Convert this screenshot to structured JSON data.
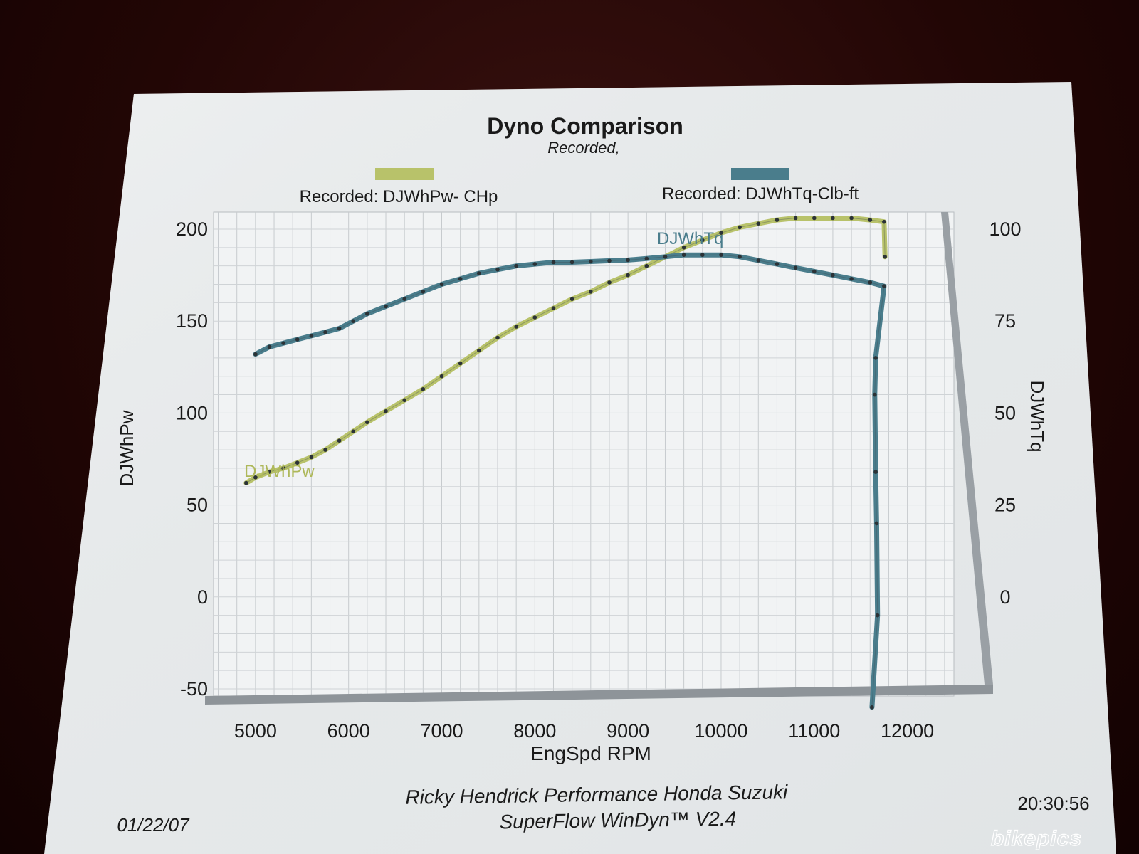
{
  "chart_data": {
    "type": "line",
    "title": "Dyno Comparison",
    "subtitle": "Recorded,",
    "xlabel": "EngSpd  RPM",
    "ylabel_left": "DJWhPw",
    "ylabel_right": "DJWhTq",
    "xlim": [
      4550,
      12500
    ],
    "ylim_left": [
      -50,
      200
    ],
    "ylim_right": [
      -25,
      100
    ],
    "x_ticks": [
      "5000",
      "6000",
      "7000",
      "8000",
      "9000",
      "10000",
      "11000",
      "12000"
    ],
    "y_ticks_left": [
      "200",
      "150",
      "100",
      "50",
      "0",
      "-50"
    ],
    "y_ticks_right": [
      "100",
      "75",
      "50",
      "25",
      "0"
    ],
    "legend": [
      {
        "name": "Recorded: DJWhPw- CHp",
        "color": "#b8c26a"
      },
      {
        "name": "Recorded: DJWhTq-Clb-ft",
        "color": "#4a7d8c"
      }
    ],
    "series": [
      {
        "name": "DJWhPw",
        "axis": "left",
        "color": "#b8c26a",
        "x": [
          4900,
          5000,
          5150,
          5300,
          5450,
          5600,
          5750,
          5900,
          6050,
          6200,
          6400,
          6600,
          6800,
          7000,
          7200,
          7400,
          7600,
          7800,
          8000,
          8200,
          8400,
          8600,
          8800,
          9000,
          9200,
          9400,
          9600,
          9800,
          10000,
          10200,
          10400,
          10600,
          10800,
          11000,
          11200,
          11400,
          11600,
          11750,
          11760
        ],
        "y": [
          62,
          65,
          68,
          70,
          73,
          76,
          80,
          85,
          90,
          95,
          101,
          107,
          113,
          120,
          127,
          134,
          141,
          147,
          152,
          157,
          162,
          166,
          171,
          175,
          180,
          185,
          190,
          194,
          198,
          201,
          203,
          205,
          206,
          206,
          206,
          206,
          205,
          204,
          185
        ]
      },
      {
        "name": "DJWhTq",
        "axis": "right",
        "color": "#4a7d8c",
        "x": [
          5000,
          5150,
          5300,
          5450,
          5600,
          5750,
          5900,
          6050,
          6200,
          6400,
          6600,
          6800,
          7000,
          7200,
          7400,
          7600,
          7800,
          8000,
          8200,
          8400,
          8600,
          8800,
          9000,
          9200,
          9400,
          9600,
          9800,
          10000,
          10200,
          10400,
          10600,
          10800,
          11000,
          11200,
          11400,
          11600,
          11750,
          11660,
          11650,
          11660,
          11670,
          11680,
          11620
        ],
        "y": [
          66,
          68,
          69,
          70,
          71,
          72,
          73,
          75,
          77,
          79,
          81,
          83,
          85,
          86.5,
          88,
          89,
          90,
          90.5,
          91,
          91,
          91.2,
          91.4,
          91.6,
          92,
          92.5,
          93,
          93,
          93,
          92.5,
          91.5,
          90.5,
          89.5,
          88.5,
          87.5,
          86.5,
          85.5,
          84.5,
          65,
          55,
          34,
          20,
          -5,
          -30
        ]
      }
    ],
    "series_labels": [
      {
        "text": "DJWhPw",
        "series": "DJWhPw"
      },
      {
        "text": "DJWhTq",
        "series": "DJWhTq"
      }
    ],
    "grid": true,
    "legend_position": "top"
  },
  "footer": {
    "date": "01/22/07",
    "time": "20:30:56",
    "line1": "Ricky Hendrick Performance Honda Suzuki",
    "line2": "SuperFlow WinDyn™ V2.4"
  },
  "watermark": "bikepics"
}
